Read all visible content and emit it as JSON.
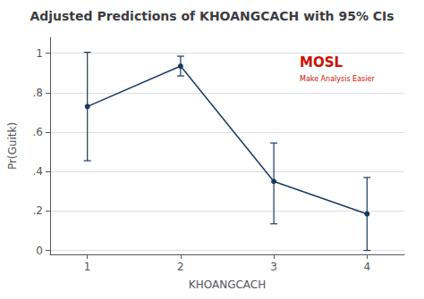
{
  "chart_data": {
    "type": "line",
    "title": "Adjusted Predictions of KHOANGCACH with 95% CIs",
    "xlabel": "KHOANGCACH",
    "ylabel": "Pr(Guitk)",
    "x": [
      1,
      2,
      3,
      4
    ],
    "values": [
      0.73,
      0.935,
      0.35,
      0.185
    ],
    "y_lower": [
      0.455,
      0.885,
      0.135,
      0.0
    ],
    "y_upper": [
      1.005,
      0.985,
      0.545,
      0.37
    ],
    "color": "#1a3a5c",
    "marker": "circle",
    "xlim": [
      0.6,
      4.4
    ],
    "ylim": [
      -0.02,
      1.08
    ],
    "xticks": [
      1,
      2,
      3,
      4
    ],
    "yticks": [
      0,
      {
        "value": 0.2,
        "label": ".2"
      },
      {
        "value": 0.4,
        "label": ".4"
      },
      {
        "value": 0.6,
        "label": ".6"
      },
      {
        "value": 0.8,
        "label": ".8"
      },
      1
    ],
    "grid": true,
    "annotations": [
      {
        "text": "MOSL",
        "color": "#cc1100"
      },
      {
        "text": "Make Analysis Easier",
        "color": "#cc1100"
      }
    ]
  }
}
